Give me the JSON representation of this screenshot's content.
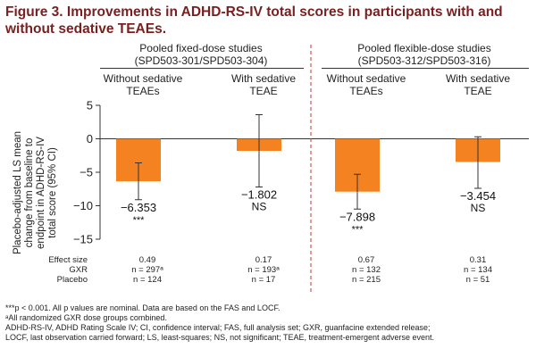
{
  "title_line1": "Figure 3. Improvements in ADHD-RS-IV total scores in participants with and",
  "title_line2": "without sedative TEAEs.",
  "groups": [
    {
      "line1": "Pooled fixed-dose studies",
      "line2": "(SPD503-301/SPD503-304)"
    },
    {
      "line1": "Pooled flexible-dose studies",
      "line2": "(SPD503-312/SPD503-316)"
    }
  ],
  "categories": [
    {
      "line1": "Without sedative",
      "line2": "TEAEs"
    },
    {
      "line1": "With sedative",
      "line2": "TEAE"
    },
    {
      "line1": "Without sedative",
      "line2": "TEAEs"
    },
    {
      "line1": "With sedative",
      "line2": "TEAE"
    }
  ],
  "ylabel_lines": [
    "Placebo-adjusted LS mean",
    "change from baseline to",
    "endpoint in ADHD-RS-IV",
    "total score (95% CI)"
  ],
  "stats_rows": [
    {
      "label": "Effect size",
      "values": [
        "0.49",
        "0.17",
        "0.67",
        "0.31"
      ]
    },
    {
      "label": "GXR",
      "values": [
        "n = 297ᵃ",
        "n = 193ᵃ",
        "n = 132",
        "n = 134"
      ]
    },
    {
      "label": "Placebo",
      "values": [
        "n = 124",
        "n = 17",
        "n = 215",
        "n = 51"
      ]
    }
  ],
  "footnotes": [
    "***p < 0.001. All p values are nominal. Data are based on the FAS and LOCF.",
    "ᵃAll randomized GXR dose groups combined.",
    "ADHD-RS-IV, ADHD Rating Scale IV; CI, confidence interval; FAS, full analysis set; GXR, guanfacine extended release;",
    "LOCF, last observation carried forward; LS, least-squares; NS, not significant; TEAE, treatment-emergent adverse event."
  ],
  "colors": {
    "bar": "#f58220",
    "title": "#7a1f1f",
    "axis": "#333333"
  },
  "chart_data": {
    "type": "bar",
    "categories": [
      "Without sedative TEAEs",
      "With sedative TEAE",
      "Without sedative TEAEs",
      "With sedative TEAE"
    ],
    "values": [
      -6.353,
      -1.802,
      -7.898,
      -3.454
    ],
    "value_labels": [
      "−6.353",
      "−1.802",
      "−7.898",
      "−3.454"
    ],
    "ci_low": [
      -9.1,
      -7.2,
      -10.5,
      -7.4
    ],
    "ci_high": [
      -3.6,
      3.6,
      -5.3,
      0.3
    ],
    "significance": [
      "***",
      "NS",
      "***",
      "NS"
    ],
    "ylim": [
      -15,
      5
    ],
    "yticks": [
      5,
      0,
      -5,
      -10,
      -15
    ],
    "ytick_labels": [
      "5",
      "0",
      "−5",
      "−10",
      "−15"
    ]
  }
}
